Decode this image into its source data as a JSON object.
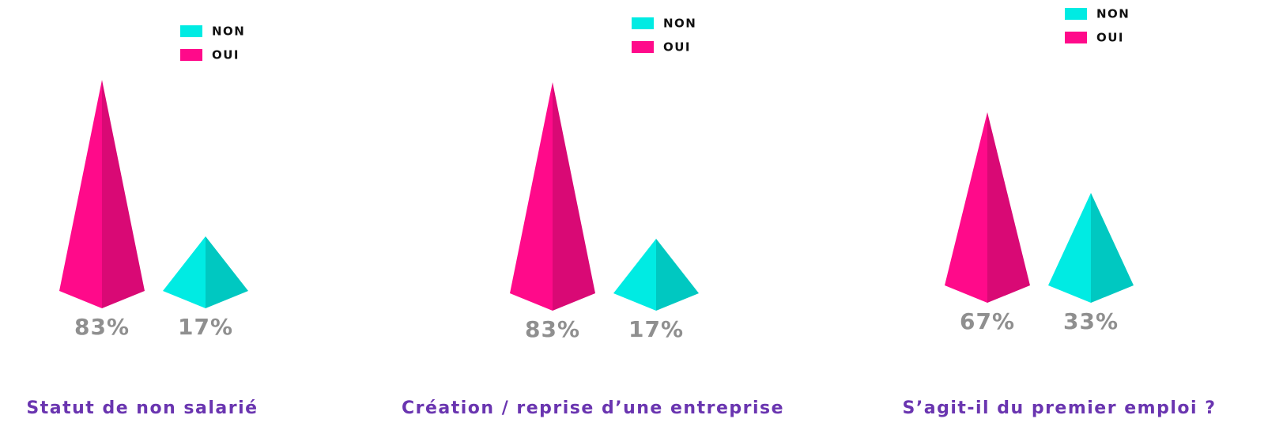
{
  "chart_data": [
    {
      "type": "pyramid",
      "title": "Statut de non salarié",
      "categories": [
        "OUI",
        "NON"
      ],
      "values": [
        83,
        17
      ],
      "value_labels": [
        "83%",
        "17%"
      ],
      "colors": [
        "#ff0a8a",
        "#00ebe3"
      ]
    },
    {
      "type": "pyramid",
      "title": "Création / reprise d’une entreprise",
      "categories": [
        "OUI",
        "NON"
      ],
      "values": [
        83,
        17
      ],
      "value_labels": [
        "83%",
        "17%"
      ],
      "colors": [
        "#ff0a8a",
        "#00ebe3"
      ]
    },
    {
      "type": "pyramid",
      "title": "S’agit-il du premier emploi ?",
      "categories": [
        "OUI",
        "NON"
      ],
      "values": [
        67,
        33
      ],
      "value_labels": [
        "67%",
        "33%"
      ],
      "colors": [
        "#ff0a8a",
        "#00ebe3"
      ]
    }
  ]
}
